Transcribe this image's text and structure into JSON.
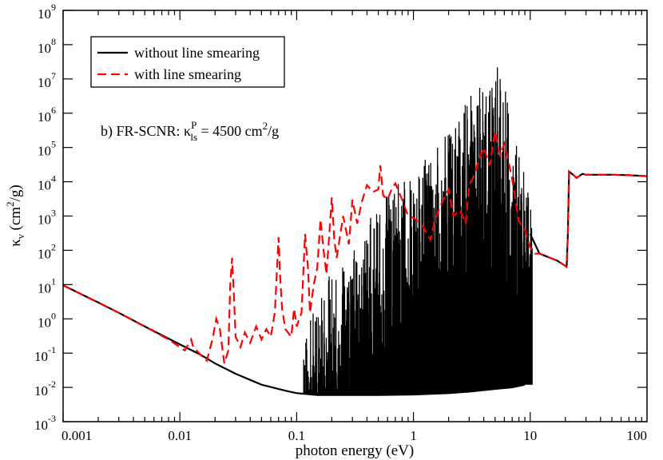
{
  "chart_data": {
    "type": "line",
    "scale": "log-log",
    "xlabel": "photon energy (eV)",
    "ylabel": {
      "main": "κ",
      "sub": "ν",
      "units_open": " (cm",
      "units_sup": "2",
      "units_close": "/g)"
    },
    "xlim": [
      0.001,
      100
    ],
    "ylim": [
      0.001,
      1000000000
    ],
    "x_ticks": [
      {
        "value": 0.001,
        "label": "0.001"
      },
      {
        "value": 0.01,
        "label": "0.01"
      },
      {
        "value": 0.1,
        "label": "0.1"
      },
      {
        "value": 1,
        "label": "1"
      },
      {
        "value": 10,
        "label": "10"
      },
      {
        "value": 100,
        "label": "100"
      }
    ],
    "y_ticks": [
      {
        "value": 0.001,
        "base": "10",
        "exp": "-3"
      },
      {
        "value": 0.01,
        "base": "10",
        "exp": "-2"
      },
      {
        "value": 0.1,
        "base": "10",
        "exp": "-1"
      },
      {
        "value": 1,
        "base": "10",
        "exp": "0"
      },
      {
        "value": 10,
        "base": "10",
        "exp": "1"
      },
      {
        "value": 100,
        "base": "10",
        "exp": "2"
      },
      {
        "value": 1000,
        "base": "10",
        "exp": "3"
      },
      {
        "value": 10000,
        "base": "10",
        "exp": "4"
      },
      {
        "value": 100000,
        "base": "10",
        "exp": "5"
      },
      {
        "value": 1000000,
        "base": "10",
        "exp": "6"
      },
      {
        "value": 10000000,
        "base": "10",
        "exp": "7"
      },
      {
        "value": 100000000,
        "base": "10",
        "exp": "8"
      },
      {
        "value": 1000000000,
        "base": "10",
        "exp": "9"
      }
    ],
    "legend": {
      "position": "top-left",
      "entries": [
        {
          "label": "without line smearing",
          "color": "#000000",
          "style": "solid"
        },
        {
          "label": "with line smearing",
          "color": "#ff0000",
          "style": "dashed"
        }
      ]
    },
    "annotation": {
      "prefix": "b) FR-SCNR: κ",
      "sup": "P",
      "sub": "ls",
      "middle": " = 4500 cm",
      "sup2": "2",
      "suffix": "/g",
      "position": "upper-left"
    },
    "series": [
      {
        "name": "without line smearing",
        "color": "#000000",
        "style": "solid",
        "baseline": [
          [
            0.001,
            9.5
          ],
          [
            0.002,
            3.0
          ],
          [
            0.003,
            1.5
          ],
          [
            0.005,
            0.6
          ],
          [
            0.01,
            0.18
          ],
          [
            0.015,
            0.09
          ],
          [
            0.02,
            0.05
          ],
          [
            0.03,
            0.025
          ],
          [
            0.05,
            0.012
          ],
          [
            0.08,
            0.008
          ],
          [
            0.1,
            0.0068
          ],
          [
            0.15,
            0.006
          ],
          [
            0.2,
            0.006
          ],
          [
            0.3,
            0.006
          ],
          [
            0.5,
            0.006
          ],
          [
            1,
            0.0062
          ],
          [
            2,
            0.0068
          ],
          [
            3,
            0.0075
          ],
          [
            5,
            0.009
          ],
          [
            7,
            0.01
          ],
          [
            9,
            0.012
          ]
        ],
        "forest_envelope": [
          [
            0.12,
            0.5
          ],
          [
            0.15,
            5
          ],
          [
            0.2,
            30
          ],
          [
            0.3,
            200
          ],
          [
            0.5,
            2000
          ],
          [
            0.7,
            8000
          ],
          [
            1,
            20000
          ],
          [
            1.5,
            80000
          ],
          [
            2,
            300000
          ],
          [
            3,
            3000000
          ],
          [
            4,
            10000000
          ],
          [
            5,
            35000000
          ],
          [
            6,
            8000000
          ],
          [
            7,
            500000
          ],
          [
            8,
            100000
          ],
          [
            9,
            20000
          ],
          [
            10,
            2000
          ],
          [
            11,
            300
          ]
        ],
        "continuum": [
          [
            10,
            300
          ],
          [
            11,
            150
          ],
          [
            12,
            80
          ],
          [
            14,
            65
          ],
          [
            17,
            50
          ],
          [
            20,
            35
          ],
          [
            20.5,
            33
          ],
          [
            21,
            300
          ],
          [
            21.5,
            20000
          ],
          [
            25,
            13000
          ],
          [
            28,
            17000
          ],
          [
            30,
            16000
          ],
          [
            50,
            16000
          ],
          [
            70,
            15500
          ],
          [
            100,
            14500
          ]
        ]
      },
      {
        "name": "with line smearing",
        "color": "#ff0000",
        "style": "dashed",
        "points": [
          [
            0.001,
            9.5
          ],
          [
            0.003,
            1.5
          ],
          [
            0.005,
            0.6
          ],
          [
            0.008,
            0.25
          ],
          [
            0.011,
            0.12
          ],
          [
            0.0125,
            0.25
          ],
          [
            0.013,
            0.15
          ],
          [
            0.015,
            0.09
          ],
          [
            0.017,
            0.06
          ],
          [
            0.019,
            0.25
          ],
          [
            0.0205,
            1.0
          ],
          [
            0.022,
            0.5
          ],
          [
            0.024,
            0.05
          ],
          [
            0.026,
            0.12
          ],
          [
            0.027,
            10
          ],
          [
            0.028,
            60
          ],
          [
            0.029,
            5
          ],
          [
            0.03,
            0.3
          ],
          [
            0.033,
            0.15
          ],
          [
            0.036,
            0.4
          ],
          [
            0.04,
            0.2
          ],
          [
            0.045,
            0.6
          ],
          [
            0.05,
            0.25
          ],
          [
            0.055,
            0.5
          ],
          [
            0.06,
            0.3
          ],
          [
            0.065,
            1.5
          ],
          [
            0.07,
            240
          ],
          [
            0.072,
            20
          ],
          [
            0.075,
            2
          ],
          [
            0.08,
            0.5
          ],
          [
            0.09,
            0.3
          ],
          [
            0.095,
            2
          ],
          [
            0.1,
            0.6
          ],
          [
            0.11,
            1.5
          ],
          [
            0.118,
            300
          ],
          [
            0.125,
            30
          ],
          [
            0.13,
            1.5
          ],
          [
            0.14,
            10
          ],
          [
            0.15,
            30
          ],
          [
            0.16,
            800
          ],
          [
            0.17,
            100
          ],
          [
            0.18,
            20
          ],
          [
            0.2,
            3500
          ],
          [
            0.21,
            200
          ],
          [
            0.22,
            60
          ],
          [
            0.25,
            1000
          ],
          [
            0.28,
            150
          ],
          [
            0.3,
            3000
          ],
          [
            0.33,
            600
          ],
          [
            0.36,
            2500
          ],
          [
            0.4,
            8000
          ],
          [
            0.45,
            5000
          ],
          [
            0.5,
            6000
          ],
          [
            0.52,
            30000
          ],
          [
            0.55,
            4000
          ],
          [
            0.6,
            3000
          ],
          [
            0.65,
            6000
          ],
          [
            0.7,
            9000
          ],
          [
            0.8,
            3000
          ],
          [
            0.9,
            1000
          ],
          [
            1.0,
            900
          ],
          [
            1.2,
            500
          ],
          [
            1.4,
            200
          ],
          [
            1.5,
            600
          ],
          [
            1.7,
            2000
          ],
          [
            2.0,
            6000
          ],
          [
            2.2,
            1000
          ],
          [
            2.5,
            1500
          ],
          [
            2.8,
            600
          ],
          [
            3.0,
            8000
          ],
          [
            3.3,
            15000
          ],
          [
            3.5,
            30000
          ],
          [
            4.0,
            100000
          ],
          [
            4.5,
            30000
          ],
          [
            5.0,
            300000
          ],
          [
            5.5,
            60000
          ],
          [
            6.0,
            130000
          ],
          [
            6.5,
            40000
          ],
          [
            7.0,
            12000
          ],
          [
            8.0,
            700
          ],
          [
            9.0,
            400
          ],
          [
            10.0,
            120
          ],
          [
            11.0,
            80
          ],
          [
            12,
            80
          ],
          [
            14,
            65
          ],
          [
            17,
            50
          ],
          [
            20,
            35
          ],
          [
            20.5,
            33
          ],
          [
            21,
            300
          ],
          [
            21.5,
            20000
          ],
          [
            25,
            13000
          ],
          [
            28,
            17000
          ],
          [
            30,
            16000
          ],
          [
            50,
            16000
          ],
          [
            70,
            15500
          ],
          [
            100,
            14500
          ]
        ]
      }
    ]
  }
}
